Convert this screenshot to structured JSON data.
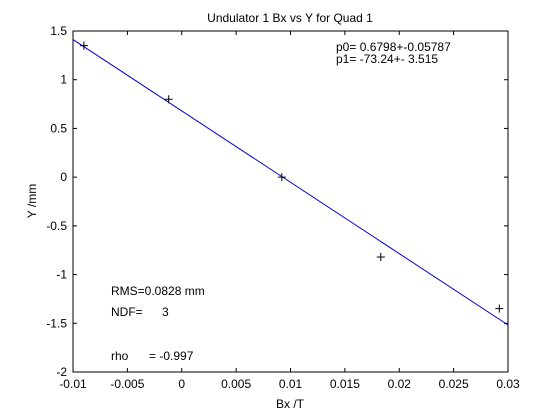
{
  "chart_data": {
    "type": "scatter",
    "title": "Undulator 1 Bx vs Y for Quad 1",
    "xlabel": "Bx /T",
    "ylabel": "Y /mm",
    "xlim": [
      -0.01,
      0.03
    ],
    "ylim": [
      -2,
      1.5
    ],
    "grid": false,
    "x_ticks": [
      -0.01,
      -0.005,
      0,
      0.005,
      0.01,
      0.015,
      0.02,
      0.025,
      0.03
    ],
    "x_tick_labels": [
      "-0.01",
      "-0.005",
      "0",
      "0.005",
      "0.01",
      "0.015",
      "0.02",
      "0.025",
      "0.03"
    ],
    "y_ticks": [
      -2,
      -1.5,
      -1,
      -0.5,
      0,
      0.5,
      1,
      1.5
    ],
    "y_tick_labels": [
      "-2",
      "-1.5",
      "-1",
      "-0.5",
      "0",
      "0.5",
      "1",
      "1.5"
    ],
    "points": {
      "x": [
        -0.009,
        -0.0012,
        0.0092,
        0.0183,
        0.0292
      ],
      "y": [
        1.35,
        0.8,
        0.0,
        -0.82,
        -1.35
      ],
      "marker": "+",
      "color": "#000000"
    },
    "fit_line": {
      "p0": 0.6798,
      "p1": -73.24,
      "x_range": [
        -0.01,
        0.03
      ],
      "color": "#0000cc"
    },
    "annotations": {
      "p0": "p0= 0.6798+-0.05787",
      "p1": "p1= -73.24+- 3.515",
      "rms": "RMS=0.0828 mm",
      "ndf_label": "NDF=",
      "ndf_value": "3",
      "rho_label": "rho",
      "rho_value": "= -0.997"
    }
  }
}
